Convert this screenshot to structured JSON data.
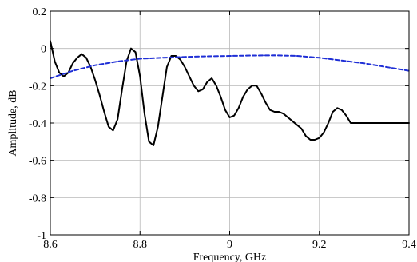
{
  "chart_data": {
    "type": "line",
    "xlabel": "Frequency, GHz",
    "ylabel": "Amplitude, dB",
    "xlim": [
      8.6,
      9.4
    ],
    "ylim": [
      -1,
      0.2
    ],
    "grid": true,
    "x_ticks": [
      8.6,
      8.8,
      9.0,
      9.2,
      9.4
    ],
    "x_tick_labels": [
      "8.6",
      "8.8",
      "9",
      "9.2",
      "9.4"
    ],
    "y_ticks": [
      -1,
      -0.8,
      -0.6,
      -0.4,
      -0.2,
      0,
      0.2
    ],
    "y_tick_labels": [
      "-1",
      "-0.8",
      "-0.6",
      "-0.4",
      "-0.2",
      "0",
      "0.2"
    ],
    "series": [
      {
        "color": "#000000",
        "style": "solid",
        "x": [
          8.6,
          8.61,
          8.62,
          8.63,
          8.64,
          8.65,
          8.66,
          8.67,
          8.68,
          8.69,
          8.7,
          8.71,
          8.72,
          8.73,
          8.74,
          8.75,
          8.76,
          8.77,
          8.78,
          8.79,
          8.8,
          8.81,
          8.82,
          8.83,
          8.84,
          8.85,
          8.86,
          8.87,
          8.88,
          8.89,
          8.9,
          8.91,
          8.92,
          8.93,
          8.94,
          8.95,
          8.96,
          8.97,
          8.98,
          8.99,
          9.0,
          9.01,
          9.02,
          9.03,
          9.04,
          9.05,
          9.06,
          9.07,
          9.08,
          9.09,
          9.1,
          9.11,
          9.12,
          9.13,
          9.14,
          9.15,
          9.16,
          9.17,
          9.18,
          9.19,
          9.2,
          9.21,
          9.22,
          9.23,
          9.24,
          9.25,
          9.26,
          9.27,
          9.28,
          9.29,
          9.3,
          9.31,
          9.32,
          9.33,
          9.34,
          9.35,
          9.36,
          9.37,
          9.38,
          9.39,
          9.4
        ],
        "y": [
          0.04,
          -0.07,
          -0.13,
          -0.15,
          -0.13,
          -0.08,
          -0.05,
          -0.03,
          -0.05,
          -0.1,
          -0.17,
          -0.25,
          -0.34,
          -0.42,
          -0.44,
          -0.38,
          -0.22,
          -0.07,
          0.0,
          -0.02,
          -0.15,
          -0.35,
          -0.5,
          -0.52,
          -0.42,
          -0.26,
          -0.1,
          -0.04,
          -0.04,
          -0.06,
          -0.1,
          -0.15,
          -0.2,
          -0.23,
          -0.22,
          -0.18,
          -0.16,
          -0.2,
          -0.26,
          -0.33,
          -0.37,
          -0.36,
          -0.32,
          -0.26,
          -0.22,
          -0.2,
          -0.2,
          -0.24,
          -0.29,
          -0.33,
          -0.34,
          -0.34,
          -0.35,
          -0.37,
          -0.39,
          -0.41,
          -0.43,
          -0.47,
          -0.49,
          -0.49,
          -0.48,
          -0.45,
          -0.4,
          -0.34,
          -0.32,
          -0.33,
          -0.36,
          -0.4,
          -0.4,
          -0.4,
          -0.4,
          -0.4,
          -0.4,
          -0.4,
          -0.4,
          -0.4,
          -0.4,
          -0.4,
          -0.4,
          -0.4,
          -0.4
        ]
      },
      {
        "color": "#1f2fd6",
        "style": "dashed",
        "x": [
          8.6,
          8.65,
          8.7,
          8.75,
          8.8,
          8.85,
          8.9,
          8.95,
          9.0,
          9.05,
          9.1,
          9.15,
          9.2,
          9.25,
          9.3,
          9.35,
          9.4
        ],
        "y": [
          -0.16,
          -0.12,
          -0.09,
          -0.07,
          -0.055,
          -0.05,
          -0.045,
          -0.042,
          -0.04,
          -0.038,
          -0.037,
          -0.04,
          -0.05,
          -0.065,
          -0.08,
          -0.1,
          -0.12
        ]
      }
    ]
  }
}
